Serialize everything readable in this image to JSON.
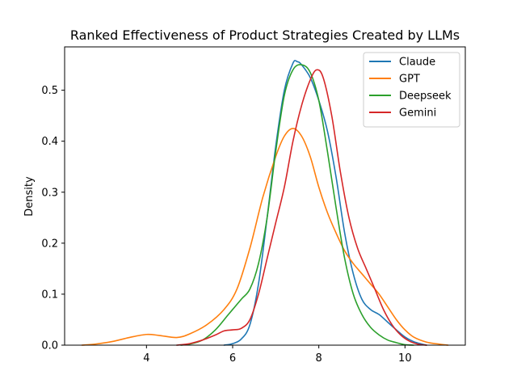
{
  "chart_data": {
    "type": "line",
    "title": "Ranked Effectiveness of Product Strategies Created by LLMs",
    "xlabel": "",
    "ylabel": "Density",
    "xlim": [
      2.1,
      11.4
    ],
    "ylim": [
      0,
      0.585
    ],
    "xticks": [
      4,
      6,
      8,
      10
    ],
    "yticks": [
      0.0,
      0.1,
      0.2,
      0.3,
      0.4,
      0.5
    ],
    "ytick_labels": [
      "0.0",
      "0.1",
      "0.2",
      "0.3",
      "0.4",
      "0.5"
    ],
    "grid": false,
    "legend_position": "top-right",
    "series": [
      {
        "name": "Claude",
        "color": "#1f77b4",
        "points": [
          [
            5.8,
            0.0
          ],
          [
            6.0,
            0.003
          ],
          [
            6.2,
            0.012
          ],
          [
            6.4,
            0.04
          ],
          [
            6.6,
            0.12
          ],
          [
            6.8,
            0.25
          ],
          [
            7.0,
            0.39
          ],
          [
            7.2,
            0.5
          ],
          [
            7.4,
            0.553
          ],
          [
            7.5,
            0.556
          ],
          [
            7.6,
            0.55
          ],
          [
            7.8,
            0.525
          ],
          [
            8.0,
            0.48
          ],
          [
            8.2,
            0.42
          ],
          [
            8.4,
            0.33
          ],
          [
            8.6,
            0.22
          ],
          [
            8.8,
            0.14
          ],
          [
            9.0,
            0.09
          ],
          [
            9.2,
            0.07
          ],
          [
            9.4,
            0.06
          ],
          [
            9.6,
            0.045
          ],
          [
            9.8,
            0.03
          ],
          [
            10.0,
            0.016
          ],
          [
            10.2,
            0.007
          ],
          [
            10.4,
            0.002
          ],
          [
            10.5,
            0.0
          ]
        ]
      },
      {
        "name": "GPT",
        "color": "#ff7f0e",
        "points": [
          [
            2.5,
            0.0
          ],
          [
            2.8,
            0.002
          ],
          [
            3.2,
            0.007
          ],
          [
            3.6,
            0.015
          ],
          [
            4.0,
            0.021
          ],
          [
            4.3,
            0.019
          ],
          [
            4.7,
            0.015
          ],
          [
            5.0,
            0.022
          ],
          [
            5.4,
            0.04
          ],
          [
            5.8,
            0.07
          ],
          [
            6.1,
            0.11
          ],
          [
            6.4,
            0.19
          ],
          [
            6.7,
            0.29
          ],
          [
            7.0,
            0.37
          ],
          [
            7.2,
            0.41
          ],
          [
            7.4,
            0.425
          ],
          [
            7.6,
            0.41
          ],
          [
            7.8,
            0.37
          ],
          [
            8.0,
            0.31
          ],
          [
            8.2,
            0.26
          ],
          [
            8.4,
            0.22
          ],
          [
            8.6,
            0.185
          ],
          [
            8.8,
            0.16
          ],
          [
            9.0,
            0.14
          ],
          [
            9.2,
            0.12
          ],
          [
            9.4,
            0.1
          ],
          [
            9.6,
            0.075
          ],
          [
            9.8,
            0.05
          ],
          [
            10.0,
            0.03
          ],
          [
            10.2,
            0.016
          ],
          [
            10.5,
            0.006
          ],
          [
            10.8,
            0.002
          ],
          [
            11.0,
            0.0
          ]
        ]
      },
      {
        "name": "Deepseek",
        "color": "#2ca02c",
        "points": [
          [
            4.8,
            0.0
          ],
          [
            5.0,
            0.002
          ],
          [
            5.3,
            0.01
          ],
          [
            5.6,
            0.03
          ],
          [
            5.9,
            0.06
          ],
          [
            6.2,
            0.09
          ],
          [
            6.4,
            0.11
          ],
          [
            6.6,
            0.16
          ],
          [
            6.8,
            0.25
          ],
          [
            7.0,
            0.38
          ],
          [
            7.2,
            0.49
          ],
          [
            7.4,
            0.54
          ],
          [
            7.6,
            0.55
          ],
          [
            7.8,
            0.535
          ],
          [
            8.0,
            0.48
          ],
          [
            8.2,
            0.38
          ],
          [
            8.4,
            0.27
          ],
          [
            8.6,
            0.17
          ],
          [
            8.8,
            0.1
          ],
          [
            9.0,
            0.06
          ],
          [
            9.2,
            0.035
          ],
          [
            9.4,
            0.02
          ],
          [
            9.6,
            0.01
          ],
          [
            9.8,
            0.005
          ],
          [
            10.0,
            0.001
          ],
          [
            10.2,
            0.0
          ]
        ]
      },
      {
        "name": "Gemini",
        "color": "#d62728",
        "points": [
          [
            4.7,
            0.0
          ],
          [
            5.0,
            0.003
          ],
          [
            5.3,
            0.01
          ],
          [
            5.6,
            0.02
          ],
          [
            5.8,
            0.028
          ],
          [
            6.0,
            0.03
          ],
          [
            6.2,
            0.033
          ],
          [
            6.4,
            0.05
          ],
          [
            6.6,
            0.1
          ],
          [
            6.8,
            0.17
          ],
          [
            7.0,
            0.24
          ],
          [
            7.2,
            0.31
          ],
          [
            7.4,
            0.4
          ],
          [
            7.6,
            0.47
          ],
          [
            7.8,
            0.52
          ],
          [
            7.95,
            0.54
          ],
          [
            8.1,
            0.525
          ],
          [
            8.3,
            0.45
          ],
          [
            8.5,
            0.34
          ],
          [
            8.7,
            0.25
          ],
          [
            8.9,
            0.19
          ],
          [
            9.1,
            0.15
          ],
          [
            9.3,
            0.11
          ],
          [
            9.5,
            0.07
          ],
          [
            9.7,
            0.04
          ],
          [
            9.9,
            0.02
          ],
          [
            10.1,
            0.008
          ],
          [
            10.3,
            0.002
          ],
          [
            10.5,
            0.0
          ]
        ]
      }
    ]
  }
}
